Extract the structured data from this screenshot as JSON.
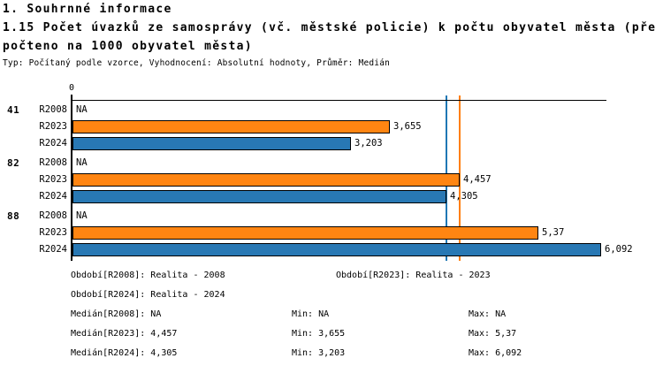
{
  "header": {
    "section_title": "1. Souhrnné informace",
    "title_line1": "1.15 Počet úvazků ze samosprávy (vč. městské policie) k počtu obyvatel města (pře",
    "title_line2": "počteno na 1000 obyvatel města)",
    "meta_line": "Typ: Počítaný podle vzorce, Vyhodnocení: Absolutní hodnoty, Průměr: Medián"
  },
  "chart_data": {
    "type": "bar",
    "orientation": "horizontal",
    "grid": false,
    "origin_tick_label": "0",
    "axis_max": 6.15,
    "colors": {
      "bar_r2023": "#FF8512",
      "bar_r2024": "#2878B4",
      "median_line_r2023": "#FF7F0E",
      "median_line_r2024": "#1F77B4",
      "axis": "#000000"
    },
    "groups": [
      {
        "label": "41",
        "rows": [
          {
            "series": "R2008",
            "value": null,
            "value_label": "NA",
            "color_key": null
          },
          {
            "series": "R2023",
            "value": 3.655,
            "value_label": "3,655",
            "color_key": "bar_r2023"
          },
          {
            "series": "R2024",
            "value": 3.203,
            "value_label": "3,203",
            "color_key": "bar_r2024"
          }
        ]
      },
      {
        "label": "82",
        "rows": [
          {
            "series": "R2008",
            "value": null,
            "value_label": "NA",
            "color_key": null
          },
          {
            "series": "R2023",
            "value": 4.457,
            "value_label": "4,457",
            "color_key": "bar_r2023"
          },
          {
            "series": "R2024",
            "value": 4.305,
            "value_label": "4,305",
            "color_key": "bar_r2024"
          }
        ]
      },
      {
        "label": "88",
        "rows": [
          {
            "series": "R2008",
            "value": null,
            "value_label": "NA",
            "color_key": null
          },
          {
            "series": "R2023",
            "value": 5.37,
            "value_label": "5,37",
            "color_key": "bar_r2023"
          },
          {
            "series": "R2024",
            "value": 6.092,
            "value_label": "6,092",
            "color_key": "bar_r2024"
          }
        ]
      }
    ],
    "median_lines": [
      {
        "series": "R2023",
        "value": 4.457,
        "color_key": "median_line_r2023"
      },
      {
        "series": "R2024",
        "value": 4.305,
        "color_key": "median_line_r2024"
      }
    ]
  },
  "footer": {
    "period_rows": [
      {
        "col1": "Období[R2008]: Realita - 2008",
        "col2": "Období[R2023]: Realita - 2023"
      },
      {
        "col1": "Období[R2024]: Realita - 2024",
        "col2": ""
      }
    ],
    "stat_rows": [
      {
        "median": "Medián[R2008]: NA",
        "min": "Min: NA",
        "max": "Max: NA"
      },
      {
        "median": "Medián[R2023]: 4,457",
        "min": "Min: 3,655",
        "max": "Max: 5,37"
      },
      {
        "median": "Medián[R2024]: 4,305",
        "min": "Min: 3,203",
        "max": "Max: 6,092"
      }
    ]
  }
}
